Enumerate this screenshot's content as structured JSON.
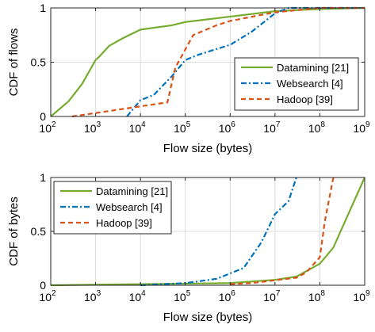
{
  "chart_data": [
    {
      "type": "line",
      "xscale": "log",
      "xlim": [
        100,
        1000000000
      ],
      "ylim": [
        0,
        1
      ],
      "xticks": [
        {
          "base": "10",
          "exp": "2"
        },
        {
          "base": "10",
          "exp": "3"
        },
        {
          "base": "10",
          "exp": "4"
        },
        {
          "base": "10",
          "exp": "5"
        },
        {
          "base": "10",
          "exp": "6"
        },
        {
          "base": "10",
          "exp": "7"
        },
        {
          "base": "10",
          "exp": "8"
        },
        {
          "base": "10",
          "exp": "9"
        }
      ],
      "yticks": [
        "0",
        "0.5",
        "1"
      ],
      "xlabel": "Flow size (bytes)",
      "ylabel": "CDF of flows",
      "grid": true,
      "legend_position": "bottom-right",
      "series": [
        {
          "name": "Datamining [21]",
          "color": "#77ac30",
          "style": "solid",
          "points": [
            [
              100,
              0
            ],
            [
              250,
              0.14
            ],
            [
              500,
              0.3
            ],
            [
              1000,
              0.52
            ],
            [
              1200,
              0.55
            ],
            [
              2000,
              0.65
            ],
            [
              4000,
              0.72
            ],
            [
              10000,
              0.8
            ],
            [
              50000,
              0.84
            ],
            [
              100000,
              0.87
            ],
            [
              1000000,
              0.92
            ],
            [
              10000000,
              0.97
            ],
            [
              100000000,
              0.99
            ],
            [
              1000000000,
              1.0
            ]
          ]
        },
        {
          "name": "Websearch [4]",
          "color": "#0072bd",
          "style": "dashdot",
          "points": [
            [
              5000,
              0
            ],
            [
              10000,
              0.15
            ],
            [
              20000,
              0.2
            ],
            [
              50000,
              0.37
            ],
            [
              100000,
              0.52
            ],
            [
              200000,
              0.57
            ],
            [
              1000000,
              0.66
            ],
            [
              3000000,
              0.78
            ],
            [
              10000000,
              0.95
            ],
            [
              20000000,
              1.0
            ],
            [
              1000000000,
              1.0
            ]
          ]
        },
        {
          "name": "Hadoop [39]",
          "color": "#d95319",
          "style": "dashed",
          "points": [
            [
              300,
              0
            ],
            [
              40000,
              0.13
            ],
            [
              60000,
              0.45
            ],
            [
              150000,
              0.75
            ],
            [
              500000,
              0.84
            ],
            [
              1000000,
              0.88
            ],
            [
              10000000,
              0.96
            ],
            [
              100000000,
              1.0
            ],
            [
              1000000000,
              1.0
            ]
          ]
        }
      ]
    },
    {
      "type": "line",
      "xscale": "log",
      "xlim": [
        100,
        1000000000
      ],
      "ylim": [
        0,
        1
      ],
      "xticks": [
        {
          "base": "10",
          "exp": "2"
        },
        {
          "base": "10",
          "exp": "3"
        },
        {
          "base": "10",
          "exp": "4"
        },
        {
          "base": "10",
          "exp": "5"
        },
        {
          "base": "10",
          "exp": "6"
        },
        {
          "base": "10",
          "exp": "7"
        },
        {
          "base": "10",
          "exp": "8"
        },
        {
          "base": "10",
          "exp": "9"
        }
      ],
      "yticks": [
        "0",
        "0.5",
        "1"
      ],
      "xlabel": "Flow size (bytes)",
      "ylabel": "CDF of bytes",
      "grid": true,
      "legend_position": "top-left",
      "series": [
        {
          "name": "Datamining [21]",
          "color": "#77ac30",
          "style": "solid",
          "points": [
            [
              100,
              0
            ],
            [
              1000000,
              0.02
            ],
            [
              10000000,
              0.05
            ],
            [
              30000000,
              0.08
            ],
            [
              100000000,
              0.2
            ],
            [
              200000000,
              0.35
            ],
            [
              1000000000,
              1.0
            ]
          ]
        },
        {
          "name": "Websearch [4]",
          "color": "#0072bd",
          "style": "dashdot",
          "points": [
            [
              10000,
              0
            ],
            [
              100000,
              0.02
            ],
            [
              500000,
              0.06
            ],
            [
              2000000,
              0.16
            ],
            [
              5000000,
              0.4
            ],
            [
              10000000,
              0.66
            ],
            [
              20000000,
              0.78
            ],
            [
              30000000,
              1.0
            ]
          ]
        },
        {
          "name": "Hadoop [39]",
          "color": "#d95319",
          "style": "dashed",
          "points": [
            [
              1000000,
              0.01
            ],
            [
              3000000,
              0.02
            ],
            [
              30000000,
              0.07
            ],
            [
              50000000,
              0.12
            ],
            [
              100000000,
              0.26
            ],
            [
              130000000,
              0.6
            ],
            [
              200000000,
              1.0
            ]
          ]
        }
      ]
    }
  ]
}
